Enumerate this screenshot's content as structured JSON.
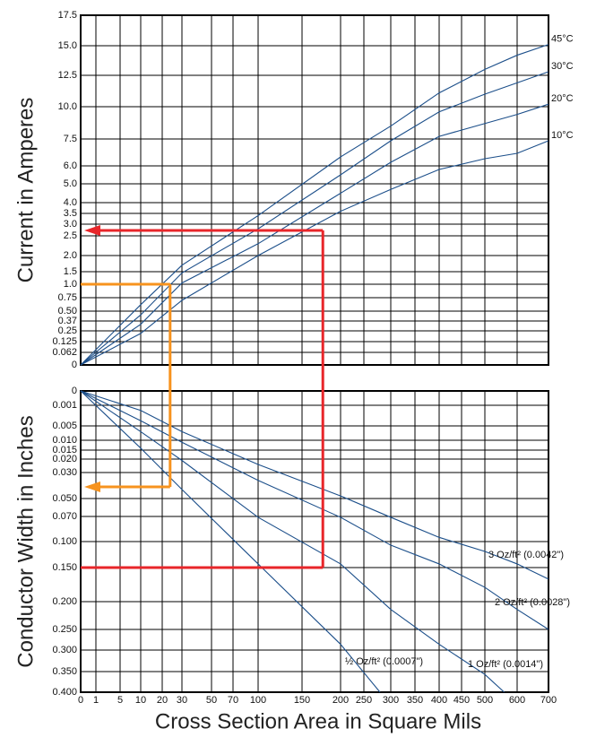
{
  "chart_data": [
    {
      "type": "line",
      "ylabel": "Current in Amperes",
      "ylim": [
        0,
        17.5
      ],
      "yticks": [
        0,
        0.062,
        0.125,
        0.25,
        0.37,
        {
          "value": 0.5,
          "label": "0.50"
        },
        0.75,
        {
          "value": 1,
          "label": "1.0"
        },
        1.5,
        {
          "value": 2,
          "label": "2.0"
        },
        2.5,
        {
          "value": 3,
          "label": "3.0"
        },
        3.5,
        {
          "value": 4,
          "label": "4.0"
        },
        {
          "value": 5,
          "label": "5.0"
        },
        {
          "value": 6,
          "label": "6.0"
        },
        7.5,
        {
          "value": 10,
          "label": "10.0"
        },
        12.5,
        {
          "value": 15,
          "label": "15.0"
        },
        17.5
      ],
      "grid": true,
      "series": [
        {
          "name": "45°C",
          "color": "#1c4f8a",
          "x": [
            0,
            10,
            30,
            100,
            200,
            300,
            400,
            500,
            600,
            700
          ],
          "values": [
            0,
            0.62,
            1.7,
            3.4,
            6.5,
            8.5,
            11.1,
            13,
            14.2,
            15.1
          ]
        },
        {
          "name": "30°C",
          "color": "#1c4f8a",
          "x": [
            0,
            10,
            30,
            100,
            200,
            300,
            400,
            500,
            600,
            700
          ],
          "values": [
            0,
            0.45,
            1.45,
            2.8,
            5.5,
            7.4,
            9.6,
            11,
            11.9,
            12.8
          ]
        },
        {
          "name": "20°C",
          "color": "#1c4f8a",
          "x": [
            0,
            10,
            30,
            100,
            200,
            300,
            400,
            500,
            600,
            700
          ],
          "values": [
            0,
            0.33,
            1.05,
            2.3,
            4.5,
            6.2,
            7.7,
            8.7,
            9.4,
            10.2
          ]
        },
        {
          "name": "10°C",
          "color": "#1c4f8a",
          "x": [
            0,
            10,
            30,
            100,
            200,
            300,
            400,
            500,
            600,
            700
          ],
          "values": [
            0,
            0.22,
            0.7,
            2,
            3.6,
            4.7,
            5.8,
            6.4,
            6.7,
            7.4
          ]
        }
      ]
    },
    {
      "type": "line",
      "ylabel": "Conductor Width in Inches",
      "xlabel": "Cross Section Area in Square Mils",
      "xlim": [
        0,
        700
      ],
      "xticks": [
        0,
        1,
        5,
        10,
        20,
        30,
        50,
        70,
        100,
        150,
        200,
        250,
        300,
        350,
        400,
        450,
        500,
        600,
        700
      ],
      "ylim": [
        0,
        0.4
      ],
      "yticks": [
        0,
        0.001,
        0.005,
        {
          "value": 0.01,
          "label": "0.010"
        },
        0.015,
        {
          "value": 0.02,
          "label": "0.020"
        },
        {
          "value": 0.03,
          "label": "0.030"
        },
        {
          "value": 0.05,
          "label": "0.050"
        },
        {
          "value": 0.07,
          "label": "0.070"
        },
        {
          "value": 0.1,
          "label": "0.100"
        },
        {
          "value": 0.15,
          "label": "0.150"
        },
        {
          "value": 0.2,
          "label": "0.200"
        },
        {
          "value": 0.25,
          "label": "0.250"
        },
        {
          "value": 0.3,
          "label": "0.300"
        },
        {
          "value": 0.35,
          "label": "0.350"
        },
        {
          "value": 0.4,
          "label": "0.400"
        }
      ],
      "grid": true,
      "series": [
        {
          "name": "3 Oz/ft² (0.0042\")",
          "color": "#1c4f8a",
          "x": [
            0,
            10,
            30,
            100,
            200,
            300,
            400,
            500,
            600,
            700
          ],
          "values": [
            0,
            0.002,
            0.007,
            0.024,
            0.048,
            0.071,
            0.095,
            0.119,
            0.143,
            0.167
          ]
        },
        {
          "name": "2 Oz/ft² (0.0028\")",
          "color": "#1c4f8a",
          "x": [
            0,
            10,
            30,
            100,
            200,
            300,
            400,
            500,
            600,
            700
          ],
          "values": [
            0,
            0.004,
            0.011,
            0.036,
            0.071,
            0.107,
            0.143,
            0.179,
            0.214,
            0.25
          ]
        },
        {
          "name": "1 Oz/ft² (0.0014\")",
          "color": "#1c4f8a",
          "x": [
            0,
            10,
            30,
            100,
            200,
            300,
            400,
            500,
            560
          ],
          "values": [
            0,
            0.007,
            0.021,
            0.071,
            0.143,
            0.214,
            0.286,
            0.357,
            0.4
          ]
        },
        {
          "name": "½ Oz/ft² (0.0007\")",
          "color": "#1c4f8a",
          "x": [
            0,
            10,
            30,
            100,
            200,
            280
          ],
          "values": [
            0,
            0.014,
            0.043,
            0.143,
            0.286,
            0.4
          ]
        }
      ]
    }
  ],
  "examples": [
    {
      "color": "#f7931e",
      "x": 24,
      "current": 1,
      "width": 0.041
    },
    {
      "color": "#e8262a",
      "x": 177,
      "current": 2.73,
      "width": 0.15
    }
  ]
}
